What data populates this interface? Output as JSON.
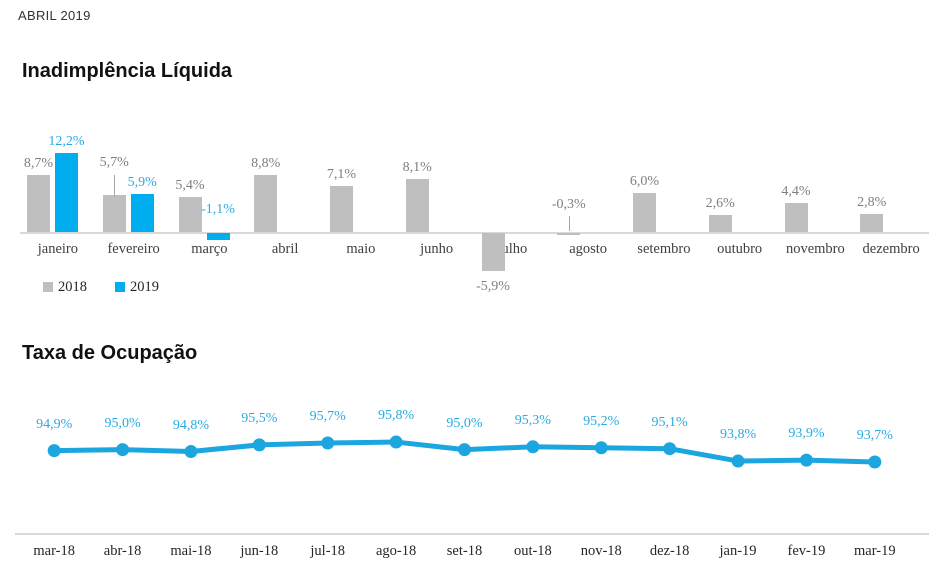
{
  "header": {
    "date_label": "ABRIL 2019"
  },
  "colors": {
    "series_2018": "#bfbfbf",
    "series_2019": "#00aeef",
    "line_blue": "#1ca6e0",
    "blue_text": "#29abe2",
    "gray_text": "#7f7f7f",
    "axis_gray": "#d9d9d9",
    "category_text": "#3f3f3f"
  },
  "chart_data": [
    {
      "type": "bar",
      "title": "Inadimplência Líquida",
      "categories": [
        "janeiro",
        "fevereiro",
        "março",
        "abril",
        "maio",
        "junho",
        "julho",
        "agosto",
        "setembro",
        "outubro",
        "novembro",
        "dezembro"
      ],
      "series": [
        {
          "name": "2018",
          "color": "#bfbfbf",
          "values": [
            8.7,
            5.7,
            5.4,
            8.8,
            7.1,
            8.1,
            -5.9,
            -0.3,
            6.0,
            2.6,
            4.4,
            2.8
          ],
          "labels": [
            "8,7%",
            "5,7%",
            "5,4%",
            "8,8%",
            "7,1%",
            "8,1%",
            "-5,9%",
            "-0,3%",
            "6,0%",
            "2,6%",
            "4,4%",
            "2,8%"
          ]
        },
        {
          "name": "2019",
          "color": "#00aeef",
          "values": [
            12.2,
            5.9,
            -1.1,
            null,
            null,
            null,
            null,
            null,
            null,
            null,
            null,
            null
          ],
          "labels": [
            "12,2%",
            "5,9%",
            "-1,1%",
            null,
            null,
            null,
            null,
            null,
            null,
            null,
            null,
            null
          ]
        }
      ],
      "legend": [
        "2018",
        "2019"
      ],
      "legend_position": "bottom-left",
      "grid": false,
      "value_suffix": "%"
    },
    {
      "type": "line",
      "title": "Taxa de Ocupação",
      "categories": [
        "mar-18",
        "abr-18",
        "mai-18",
        "jun-18",
        "jul-18",
        "ago-18",
        "set-18",
        "out-18",
        "nov-18",
        "dez-18",
        "jan-19",
        "fev-19",
        "mar-19"
      ],
      "values": [
        94.9,
        95.0,
        94.8,
        95.5,
        95.7,
        95.8,
        95.0,
        95.3,
        95.2,
        95.1,
        93.8,
        93.9,
        93.7
      ],
      "labels": [
        "94,9%",
        "95,0%",
        "94,8%",
        "95,5%",
        "95,7%",
        "95,8%",
        "95,0%",
        "95,3%",
        "95,2%",
        "95,1%",
        "93,8%",
        "93,9%",
        "93,7%"
      ],
      "ylim": [
        93.0,
        96.5
      ],
      "grid": false,
      "value_suffix": "%"
    }
  ]
}
